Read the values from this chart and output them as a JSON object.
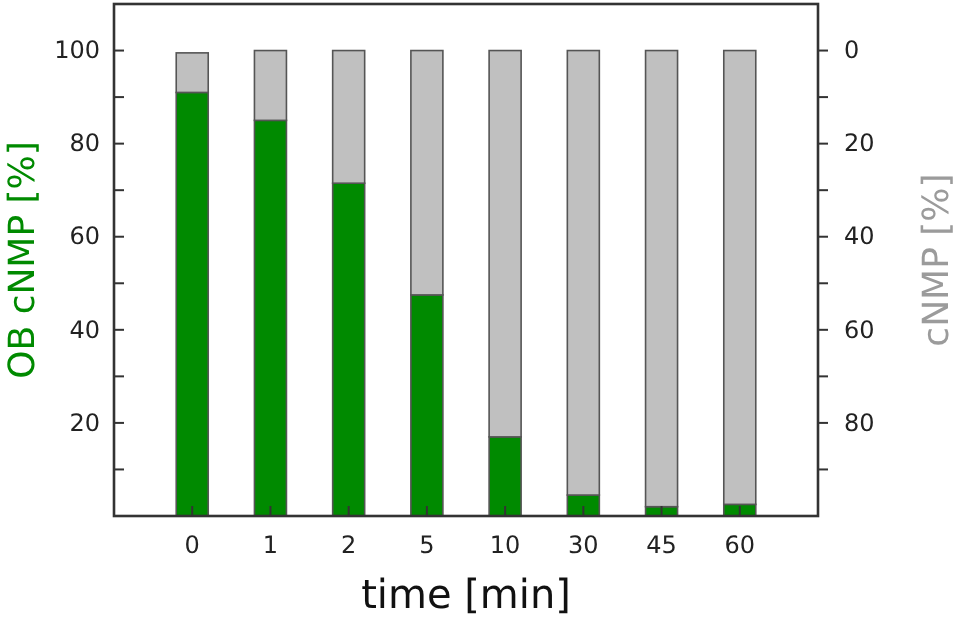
{
  "chart_data": {
    "type": "bar",
    "stacked": true,
    "xlabel": "time [min]",
    "ylabel": "OB cNMP [%]",
    "y2label": "cNMP [%]",
    "categories": [
      "0",
      "1",
      "2",
      "5",
      "10",
      "30",
      "45",
      "60"
    ],
    "series": [
      {
        "color": "#008a00",
        "values": [
          91,
          85,
          71.5,
          47.5,
          17,
          4.5,
          2,
          2.5
        ]
      },
      {
        "color": "#c0c0c0",
        "values": [
          8.5,
          15,
          28.5,
          52.5,
          83,
          95.5,
          98,
          97.5
        ]
      }
    ],
    "ylim": [
      0,
      110
    ],
    "yticks": [
      {
        "value": 0,
        "label": null
      },
      {
        "value": 10,
        "label": null
      },
      20,
      {
        "value": 30,
        "label": null
      },
      40,
      {
        "value": 50,
        "label": null
      },
      60,
      {
        "value": 70,
        "label": null
      },
      80,
      {
        "value": 90,
        "label": null
      },
      100
    ],
    "y2lim": [
      100,
      -10
    ],
    "y2ticks": [
      0,
      {
        "value": 10,
        "label": null
      },
      20,
      {
        "value": 30,
        "label": null
      },
      40,
      {
        "value": 50,
        "label": null
      },
      60,
      {
        "value": 70,
        "label": null
      },
      80,
      {
        "value": 90,
        "label": null
      }
    ],
    "grid": false
  }
}
